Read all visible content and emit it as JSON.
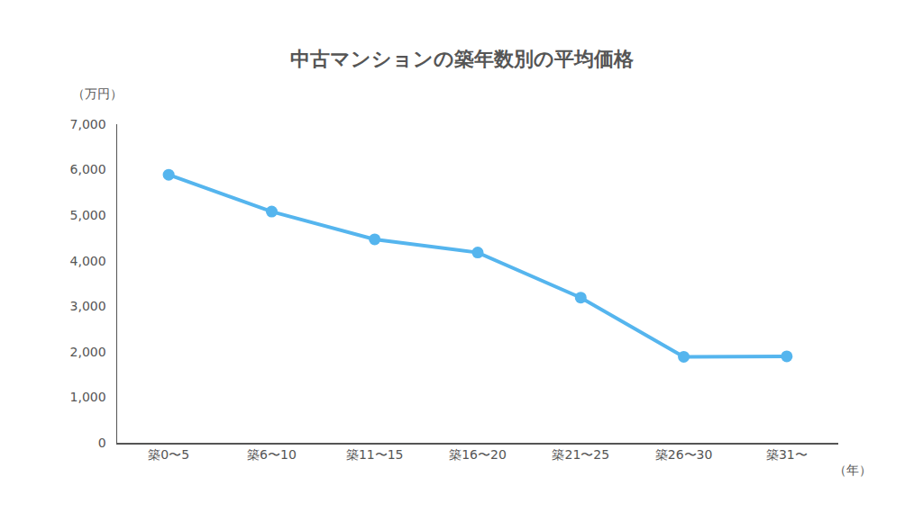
{
  "chart_data": {
    "type": "line",
    "title": "中古マンションの築年数別の平均価格",
    "y_label": "（万円）",
    "x_label": "（年）",
    "categories": [
      "築0〜5",
      "築6〜10",
      "築11〜15",
      "築16〜20",
      "築21〜25",
      "築26〜30",
      "築31〜"
    ],
    "values": [
      5890,
      5080,
      4470,
      4180,
      3190,
      1890,
      1900
    ],
    "color": "#55b5ee",
    "marker": "circle",
    "line_style": "solid",
    "ylim": [
      0,
      7000
    ],
    "yticks": [
      0,
      {
        "value": 1000,
        "label": "1,000"
      },
      {
        "value": 2000,
        "label": "2,000"
      },
      {
        "value": 3000,
        "label": "3,000"
      },
      {
        "value": 4000,
        "label": "4,000"
      },
      {
        "value": 5000,
        "label": "5,000"
      },
      {
        "value": 6000,
        "label": "6,000"
      },
      {
        "value": 7000,
        "label": "7,000"
      }
    ],
    "grid": false
  }
}
